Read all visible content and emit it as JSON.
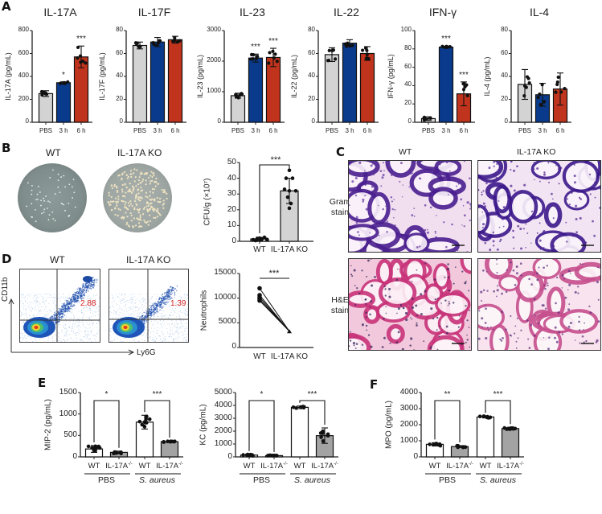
{
  "figure": {
    "panels": {
      "A": "A",
      "B": "B",
      "C": "C",
      "D": "D",
      "E": "E",
      "F": "F"
    },
    "colors": {
      "pbs": "#d3d3d3",
      "h3": "#0a3a8c",
      "h6": "#c0341d",
      "white_bar": "#ffffff",
      "gray_bar": "#a3a3a3",
      "flow_red_text": "#d62020"
    }
  },
  "panelA": {
    "x_labels": [
      "PBS",
      "3 h",
      "6 h"
    ],
    "charts": [
      {
        "title": "IL-17A",
        "ylabel": "IL-17A (pg/mL)",
        "ticks": [
          "0",
          "200",
          "400",
          "600",
          "800"
        ],
        "sig": [
          "",
          "*",
          "***"
        ]
      },
      {
        "title": "IL-17F",
        "ylabel": "IL-17F (pg/mL)",
        "ticks": [
          "0",
          "20",
          "40",
          "60",
          "80"
        ],
        "sig": [
          "",
          "",
          ""
        ]
      },
      {
        "title": "IL-23",
        "ylabel": "IL-23 (pg/mL)",
        "ticks": [
          "0",
          "1000",
          "2000",
          "3000"
        ],
        "sig": [
          "",
          "***",
          "***"
        ]
      },
      {
        "title": "IL-22",
        "ylabel": "IL-22 (pg/mL)",
        "ticks": [
          "0",
          "20",
          "40",
          "60",
          "80"
        ],
        "sig": [
          "",
          "",
          ""
        ]
      },
      {
        "title": "IFN-γ",
        "ylabel": "IFN-γ (pg/mL)",
        "ticks": [
          "0",
          "20",
          "40",
          "60",
          "80",
          "100"
        ],
        "sig": [
          "",
          "***",
          "***"
        ]
      },
      {
        "title": "IL-4",
        "ylabel": "IL-4 (pg/mL)",
        "ticks": [
          "0",
          "20",
          "40",
          "60",
          "80"
        ],
        "sig": [
          "",
          "",
          ""
        ]
      }
    ]
  },
  "panelB": {
    "plate_labels": [
      "WT",
      "IL-17A KO"
    ],
    "chart": {
      "ylabel": "CFU/g (×10⁷)",
      "ticks": [
        "0",
        "10",
        "20",
        "30",
        "40",
        "50"
      ],
      "x_labels": [
        "WT",
        "IL-17A KO"
      ],
      "sig": "***"
    }
  },
  "panelC": {
    "col_labels": [
      "WT",
      "IL-17A KO"
    ],
    "row_labels": [
      [
        "Gram",
        "stain"
      ],
      [
        "H&E",
        "stain"
      ]
    ]
  },
  "panelD": {
    "col_labels": [
      "WT",
      "IL-17A KO"
    ],
    "y_axis": "CD11b",
    "x_axis": "Ly6G",
    "percentages": [
      "2.88",
      "1.39"
    ],
    "chart": {
      "ylabel": "Neutrophils",
      "ticks": [
        "0",
        "5000",
        "10000",
        "15000"
      ],
      "x_labels": [
        "WT",
        "IL-17A KO"
      ],
      "sig": "***"
    }
  },
  "panelE": {
    "charts": [
      {
        "ylabel": "MIP-2 (pg/mL)",
        "ticks": [
          "0",
          "500",
          "1000",
          "1500"
        ],
        "sig": [
          "*",
          "***"
        ]
      },
      {
        "ylabel": "KC (pg/mL)",
        "ticks": [
          "0",
          "1000",
          "2000",
          "3000",
          "4000",
          "5000"
        ],
        "sig": [
          "*",
          "***"
        ]
      }
    ],
    "x_labels": [
      "WT",
      "IL-17A",
      "WT",
      "IL-17A"
    ],
    "superscript": "-/-",
    "groups": [
      "PBS",
      "S. aureus"
    ]
  },
  "panelF": {
    "chart": {
      "ylabel": "MPO (pg/mL)",
      "ticks": [
        "0",
        "1000",
        "2000",
        "3000",
        "4000"
      ],
      "sig": [
        "**",
        "***"
      ]
    },
    "x_labels": [
      "WT",
      "IL-17A",
      "WT",
      "IL-17A"
    ],
    "superscript": "-/-",
    "groups": [
      "PBS",
      "S. aureus"
    ]
  },
  "chart_data": [
    {
      "type": "bar",
      "title": "IL-17A",
      "ylabel": "IL-17A (pg/mL)",
      "categories": [
        "PBS",
        "3 h",
        "6 h"
      ],
      "values": [
        250,
        345,
        570
      ],
      "error": [
        25,
        8,
        95
      ],
      "ylim": [
        0,
        800
      ],
      "significance": [
        "",
        "*",
        "***"
      ]
    },
    {
      "type": "bar",
      "title": "IL-17F",
      "ylabel": "IL-17F (pg/mL)",
      "categories": [
        "PBS",
        "3 h",
        "6 h"
      ],
      "values": [
        67,
        70,
        72
      ],
      "error": [
        3,
        4,
        3
      ],
      "ylim": [
        0,
        80
      ]
    },
    {
      "type": "bar",
      "title": "IL-23",
      "ylabel": "IL-23 (pg/mL)",
      "categories": [
        "PBS",
        "3 h",
        "6 h"
      ],
      "values": [
        870,
        2100,
        2120
      ],
      "error": [
        80,
        130,
        300
      ],
      "ylim": [
        0,
        3000
      ],
      "significance": [
        "",
        "***",
        "***"
      ]
    },
    {
      "type": "bar",
      "title": "IL-22",
      "ylabel": "IL-22 (pg/mL)",
      "categories": [
        "PBS",
        "3 h",
        "6 h"
      ],
      "values": [
        59,
        69,
        60
      ],
      "error": [
        6,
        3,
        6
      ],
      "ylim": [
        0,
        80
      ]
    },
    {
      "type": "bar",
      "title": "IFN-γ",
      "ylabel": "IFN-γ (pg/mL)",
      "categories": [
        "PBS",
        "3 h",
        "6 h"
      ],
      "values": [
        4,
        82,
        31
      ],
      "error": [
        2,
        1,
        13
      ],
      "ylim": [
        0,
        100
      ],
      "significance": [
        "",
        "***",
        "***"
      ]
    },
    {
      "type": "bar",
      "title": "IL-4",
      "ylabel": "IL-4 (pg/mL)",
      "categories": [
        "PBS",
        "3 h",
        "6 h"
      ],
      "values": [
        33,
        24,
        29
      ],
      "error": [
        13,
        10,
        14
      ],
      "ylim": [
        0,
        80
      ]
    },
    {
      "type": "bar",
      "title": "CFU",
      "ylabel": "CFU/g (×10⁷)",
      "categories": [
        "WT",
        "IL-17A KO"
      ],
      "values": [
        1.5,
        32
      ],
      "error": [
        1,
        8
      ],
      "ylim": [
        0,
        50
      ],
      "significance": "***"
    },
    {
      "type": "line",
      "title": "Neutrophils",
      "ylabel": "Neutrophils",
      "categories": [
        "WT",
        "IL-17A KO"
      ],
      "series": [
        {
          "name": "paired",
          "values": [
            10200,
            3300
          ]
        }
      ],
      "wt_points": [
        9500,
        9800,
        10200,
        10600,
        12000
      ],
      "ylim": [
        0,
        15000
      ],
      "significance": "***"
    },
    {
      "type": "bar",
      "title": "MIP-2",
      "ylabel": "MIP-2 (pg/mL)",
      "categories": [
        "PBS WT",
        "PBS IL-17A-/-",
        "S. aureus WT",
        "S. aureus IL-17A-/-"
      ],
      "values": [
        185,
        105,
        810,
        355
      ],
      "error": [
        80,
        30,
        160,
        20
      ],
      "ylim": [
        0,
        1500
      ],
      "significance": [
        "*",
        "***"
      ]
    },
    {
      "type": "bar",
      "title": "KC",
      "ylabel": "KC (pg/mL)",
      "categories": [
        "PBS WT",
        "PBS IL-17A-/-",
        "S. aureus WT",
        "S. aureus IL-17A-/-"
      ],
      "values": [
        140,
        100,
        3850,
        1650
      ],
      "error": [
        60,
        30,
        100,
        600
      ],
      "ylim": [
        0,
        5000
      ],
      "significance": [
        "*",
        "***"
      ]
    },
    {
      "type": "bar",
      "title": "MPO",
      "ylabel": "MPO (pg/mL)",
      "categories": [
        "PBS WT",
        "PBS IL-17A-/-",
        "S. aureus WT",
        "S. aureus IL-17A-/-"
      ],
      "values": [
        780,
        640,
        2480,
        1760
      ],
      "error": [
        100,
        60,
        60,
        80
      ],
      "ylim": [
        0,
        4000
      ],
      "significance": [
        "**",
        "***"
      ]
    }
  ]
}
